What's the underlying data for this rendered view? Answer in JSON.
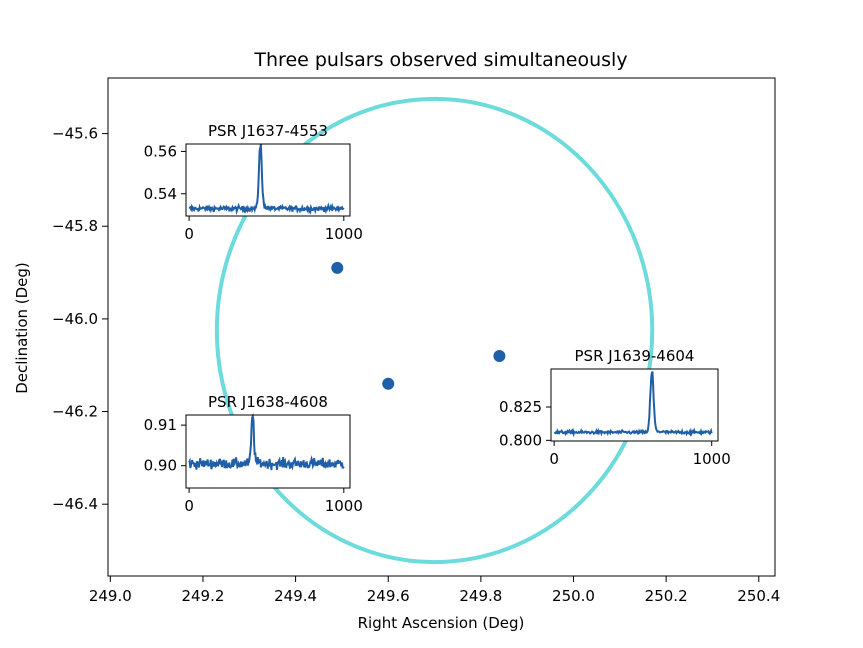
{
  "chart_data": {
    "type": "scatter",
    "title": "Three pulsars observed simultaneously",
    "xlabel": "Right Ascension (Deg)",
    "ylabel": "Declination (Deg)",
    "xlim": [
      248.995,
      250.435
    ],
    "ylim": [
      -46.555,
      -45.48
    ],
    "xticks": [
      249.0,
      249.2,
      249.4,
      249.6,
      249.8,
      250.0,
      250.2,
      250.4
    ],
    "xtick_labels": [
      "249.0",
      "249.2",
      "249.4",
      "249.6",
      "249.8",
      "250.0",
      "250.2",
      "250.4"
    ],
    "yticks": [
      -45.6,
      -45.8,
      -46.0,
      -46.2,
      -46.4
    ],
    "ytick_labels": [
      "−45.6",
      "−45.8",
      "−46.0",
      "−46.2",
      "−46.4"
    ],
    "grid": false,
    "circle": {
      "center_ra": 249.7,
      "center_dec": -46.025,
      "radius_ra": 0.47,
      "radius_dec": 0.5,
      "color": "#6ddbdb"
    },
    "points": [
      {
        "name": "PSR J1637-4553",
        "ra": 249.49,
        "dec": -45.89
      },
      {
        "name": "PSR J1638-4608",
        "ra": 249.6,
        "dec": -46.14
      },
      {
        "name": "PSR J1639-4604",
        "ra": 249.84,
        "dec": -46.08
      }
    ],
    "point_color": "#1f5fa8",
    "insets": [
      {
        "title": "PSR J1637-4553",
        "xlim": [
          -20,
          1040
        ],
        "ylim": [
          0.5295,
          0.5635
        ],
        "xticks": [
          0,
          1000
        ],
        "xtick_labels": [
          "0",
          "1000"
        ],
        "yticks": [
          0.54,
          0.56
        ],
        "ytick_labels": [
          "0.54",
          "0.56"
        ],
        "baseline": 0.533,
        "noise": 0.0012,
        "peak_x": 460,
        "peak_height": 0.0295,
        "peak_width": 9
      },
      {
        "title": "PSR J1638-4608",
        "xlim": [
          -20,
          1040
        ],
        "ylim": [
          0.8945,
          0.9125
        ],
        "xticks": [
          0,
          1000
        ],
        "xtick_labels": [
          "0",
          "1000"
        ],
        "yticks": [
          0.9,
          0.91
        ],
        "ytick_labels": [
          "0.90",
          "0.91"
        ],
        "baseline": 0.9005,
        "noise": 0.0013,
        "peak_x": 410,
        "peak_height": 0.0115,
        "peak_width": 8
      },
      {
        "title": "PSR J1639-4604",
        "xlim": [
          -20,
          1040
        ],
        "ylim": [
          0.7995,
          0.8535
        ],
        "xticks": [
          0,
          1000
        ],
        "xtick_labels": [
          "0",
          "1000"
        ],
        "yticks": [
          0.8,
          0.825
        ],
        "ytick_labels": [
          "0.800",
          "0.825"
        ],
        "baseline": 0.806,
        "noise": 0.0012,
        "peak_x": 620,
        "peak_height": 0.044,
        "peak_width": 10
      }
    ],
    "line_color": "#1f5fa8"
  }
}
